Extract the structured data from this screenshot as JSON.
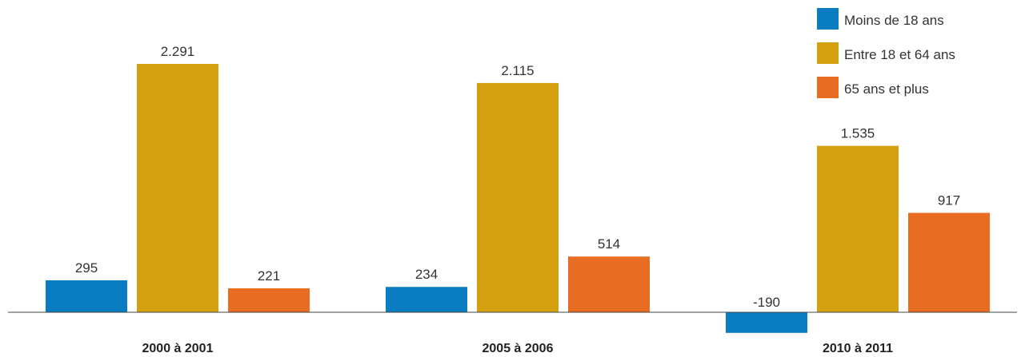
{
  "chart_data": {
    "type": "bar",
    "title": "",
    "xlabel": "",
    "ylabel": "",
    "categories": [
      "2000 à 2001",
      "2005 à 2006",
      "2010 à 2011"
    ],
    "series": [
      {
        "name": "Moins de 18 ans",
        "values": [
          295,
          234,
          -190
        ],
        "labels": [
          "295",
          "234",
          "-190"
        ],
        "color": "#0a7dc2"
      },
      {
        "name": "Entre 18 et 64 ans",
        "values": [
          2291,
          2115,
          1535
        ],
        "labels": [
          "2.291",
          "2.115",
          "1.535"
        ],
        "color": "#d4a010"
      },
      {
        "name": "65 ans et plus",
        "values": [
          221,
          514,
          917
        ],
        "labels": [
          "221",
          "514",
          "917"
        ],
        "color": "#e86d22"
      }
    ],
    "ylim": [
      -190,
      2291
    ],
    "grid": false,
    "legend": "top-right"
  }
}
